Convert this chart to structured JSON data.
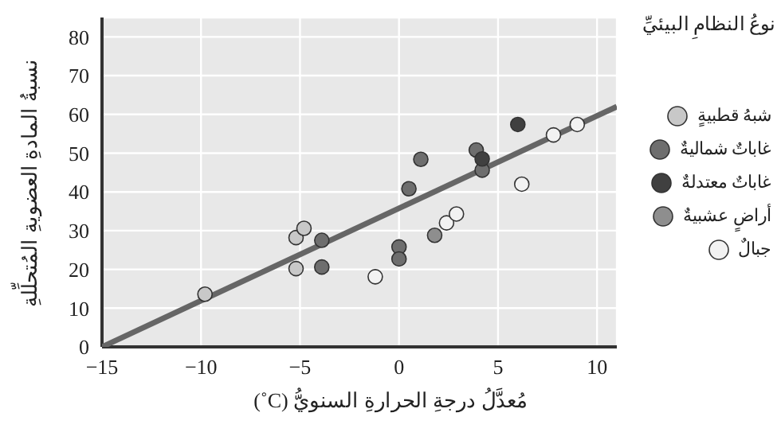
{
  "chart_data": {
    "type": "scatter",
    "xlabel": "مُعدَّلُ درجةِ الحرارةِ السنويُّ (C˚)",
    "ylabel": "نسبةُ المادةِ العضويةِ المُتحلِّلةِ",
    "legend_title": "نوعُ النظامِ البيئيِّ",
    "xlim": [
      -15,
      11
    ],
    "xticks": [
      -15,
      -10,
      -5,
      0,
      5,
      10
    ],
    "ylim": [
      0,
      85
    ],
    "yticks": [
      0,
      10,
      20,
      30,
      40,
      50,
      60,
      70,
      80
    ],
    "grid": true,
    "legend": "right",
    "marker": "circle",
    "series": [
      {
        "name": "شبهُ قطبيةٍ",
        "color": "#c8c8c8",
        "x": [
          -9.8,
          -5.2,
          -4.8,
          -5.2
        ],
        "values": [
          13.6,
          28.2,
          30.6,
          20.2
        ]
      },
      {
        "name": "غاباتٌ شماليةٌ",
        "color": "#6e6e6e",
        "x": [
          -3.9,
          -3.9,
          0,
          0,
          0.5,
          1.1,
          3.9,
          4.2
        ],
        "values": [
          27.5,
          20.6,
          25.8,
          22.7,
          40.8,
          48.4,
          50.8,
          45.6
        ]
      },
      {
        "name": "غاباتٌ معتدلةٌ",
        "color": "#404040",
        "x": [
          4.2,
          6.0
        ],
        "values": [
          48.5,
          57.4
        ]
      },
      {
        "name": "أراضٍ عشبيةٌ",
        "color": "#8e8e8e",
        "x": [
          1.8
        ],
        "values": [
          28.8
        ]
      },
      {
        "name": "جبالٌ",
        "color": "#f2f2f2",
        "x": [
          -1.2,
          2.4,
          2.9,
          6.2,
          7.8,
          9.0
        ],
        "values": [
          18.1,
          32,
          34.3,
          42,
          54.7,
          57.4
        ]
      },
      {
        "type": "line",
        "marker": "none",
        "color": "#666666",
        "x": [
          -15,
          11
        ],
        "values": [
          0,
          62
        ]
      }
    ]
  }
}
